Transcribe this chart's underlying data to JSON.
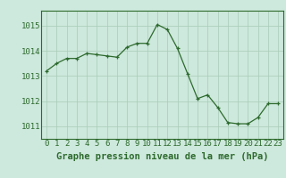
{
  "x": [
    0,
    1,
    2,
    3,
    4,
    5,
    6,
    7,
    8,
    9,
    10,
    11,
    12,
    13,
    14,
    15,
    16,
    17,
    18,
    19,
    20,
    21,
    22,
    23
  ],
  "y": [
    1013.2,
    1013.5,
    1013.7,
    1013.7,
    1013.9,
    1013.85,
    1013.8,
    1013.75,
    1014.15,
    1014.3,
    1014.3,
    1015.05,
    1014.85,
    1014.1,
    1013.1,
    1012.1,
    1012.25,
    1011.75,
    1011.15,
    1011.1,
    1011.1,
    1011.35,
    1011.9,
    1011.9
  ],
  "line_color": "#2d6a2d",
  "marker_color": "#2d6a2d",
  "bg_color": "#cde8dc",
  "plot_bg_color": "#cde8dc",
  "grid_color": "#a8ccb8",
  "border_color": "#2d6a2d",
  "ylabel_ticks": [
    1011,
    1012,
    1013,
    1014,
    1015
  ],
  "xlabel": "Graphe pression niveau de la mer (hPa)",
  "xlabel_fontsize": 7.5,
  "tick_fontsize": 6.5,
  "ylim": [
    1010.5,
    1015.6
  ],
  "xlim": [
    -0.5,
    23.5
  ]
}
